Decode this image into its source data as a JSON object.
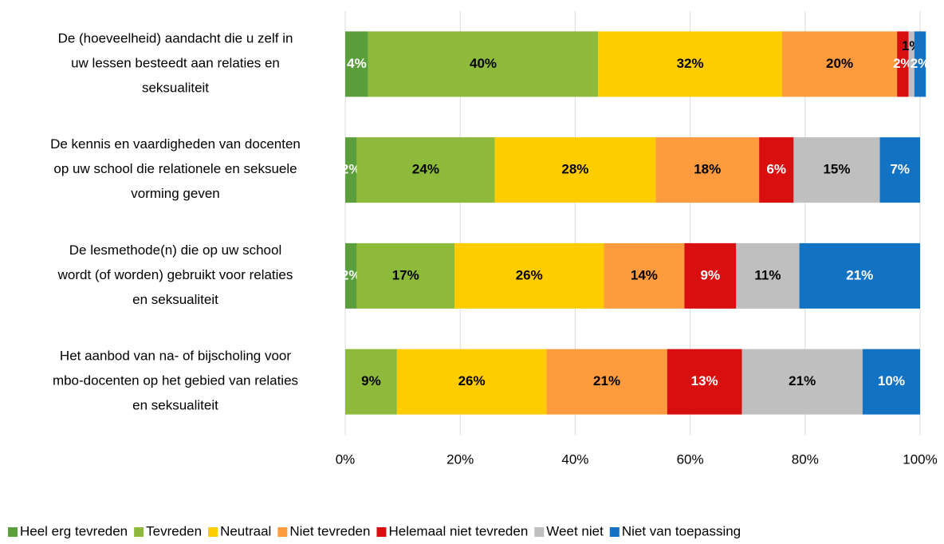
{
  "chart_data": {
    "type": "stacked-bar-horizontal",
    "categories": [
      "De (hoeveelheid) aandacht die u zelf in\nuw lessen besteedt aan relaties en\nseksualiteit",
      "De kennis en vaardigheden van docenten\nop uw school die relationele en seksuele\nvorming geven",
      "De lesmethode(n) die op uw school\nwordt (of worden) gebruikt voor relaties\nen seksualiteit",
      "Het aanbod van na- of bijscholing voor\nmbo-docenten op het gebied van relaties\nen seksualiteit"
    ],
    "series": [
      {
        "name": "Heel erg tevreden",
        "color": "#5b9f3c",
        "label_color": "#ffffff",
        "values": [
          4,
          2,
          2,
          0
        ]
      },
      {
        "name": "Tevreden",
        "color": "#8dba3a",
        "label_color": "#000000",
        "values": [
          40,
          24,
          17,
          9
        ]
      },
      {
        "name": "Neutraal",
        "color": "#ffcc00",
        "label_color": "#000000",
        "values": [
          32,
          28,
          26,
          26
        ]
      },
      {
        "name": "Niet tevreden",
        "color": "#fd9b3e",
        "label_color": "#000000",
        "values": [
          20,
          18,
          14,
          21
        ]
      },
      {
        "name": "Helemaal niet tevreden",
        "color": "#d90f0f",
        "label_color": "#ffffff",
        "values": [
          2,
          6,
          9,
          13
        ]
      },
      {
        "name": "Weet niet",
        "color": "#bfbfbf",
        "label_color": "#000000",
        "values": [
          1,
          15,
          11,
          21
        ]
      },
      {
        "name": "Niet van toepassing",
        "color": "#1272c4",
        "label_color": "#ffffff",
        "values": [
          2,
          7,
          21,
          10
        ]
      }
    ],
    "xlim": [
      0,
      100
    ],
    "xticks": [
      {
        "value": 0,
        "label": "0%"
      },
      {
        "value": 20,
        "label": "20%"
      },
      {
        "value": 40,
        "label": "40%"
      },
      {
        "value": 60,
        "label": "60%"
      },
      {
        "value": 80,
        "label": "80%"
      },
      {
        "value": 100,
        "label": "100%"
      }
    ],
    "value_labels": [
      [
        "4%",
        "2%",
        "2%",
        null
      ],
      [
        "40%",
        "24%",
        "17%",
        "9%"
      ],
      [
        "32%",
        "28%",
        "26%",
        "26%"
      ],
      [
        "20%",
        "18%",
        "14%",
        "21%"
      ],
      [
        "2%",
        "6%",
        "9%",
        "13%"
      ],
      [
        "1%",
        "15%",
        "11%",
        "21%"
      ],
      [
        "2%",
        "7%",
        "21%",
        "10%"
      ]
    ],
    "grid": true,
    "legend": "bottom"
  }
}
